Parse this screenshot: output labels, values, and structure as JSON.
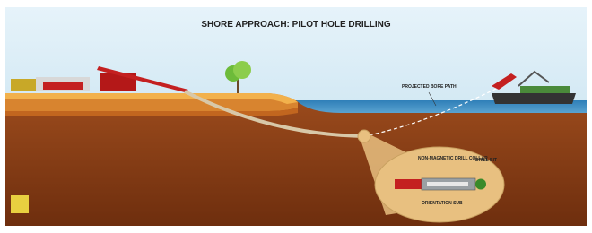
{
  "header": {
    "title": "SHORE APPROACH: PILOT HOLE DRILLING"
  },
  "labels": {
    "bore_path": "PROJECTED BORE PATH",
    "collar": "NON-MAGNETIC DRILL COLLAR",
    "bit": "DRILL BIT",
    "sub": "ORIENTATION SUB"
  }
}
